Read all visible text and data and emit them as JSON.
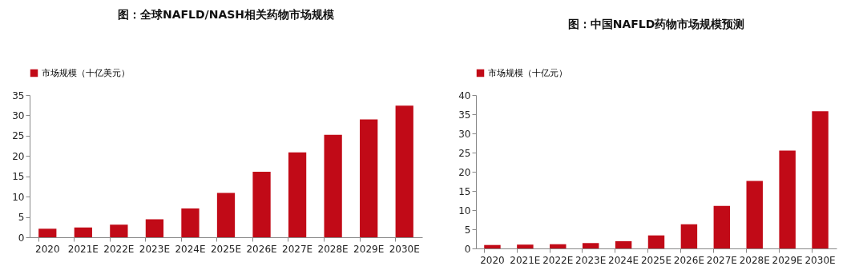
{
  "chart_data": [
    {
      "type": "bar",
      "title": "图：全球NAFLD/NASH相关药物市场规模",
      "categories": [
        "2020",
        "2021E",
        "2022E",
        "2023E",
        "2024E",
        "2025E",
        "2026E",
        "2027E",
        "2028E",
        "2029E",
        "2030E"
      ],
      "series": [
        {
          "name": "市场规模（十亿美元）",
          "color": "#c10a17",
          "values": [
            2.1,
            2.4,
            3.1,
            4.4,
            7.1,
            10.9,
            16.1,
            20.9,
            25.2,
            29.0,
            32.4
          ]
        }
      ],
      "ylim": [
        0,
        35
      ],
      "yticks": [
        0,
        5,
        10,
        15,
        20,
        25,
        30,
        35
      ],
      "grid": false,
      "legend": "top"
    },
    {
      "type": "bar",
      "title": "图：中国NAFLD药物市场规模预测",
      "categories": [
        "2020",
        "2021E",
        "2022E",
        "2023E",
        "2024E",
        "2025E",
        "2026E",
        "2027E",
        "2028E",
        "2029E",
        "2030E"
      ],
      "series": [
        {
          "name": "市场规模（十亿元）",
          "color": "#c10a17",
          "values": [
            0.9,
            1.0,
            1.1,
            1.4,
            1.9,
            3.4,
            6.3,
            11.1,
            17.6,
            25.5,
            35.8
          ]
        }
      ],
      "ylim": [
        0,
        40
      ],
      "yticks": [
        0,
        5,
        10,
        15,
        20,
        25,
        30,
        35,
        40
      ],
      "grid": false,
      "legend": "top"
    }
  ]
}
